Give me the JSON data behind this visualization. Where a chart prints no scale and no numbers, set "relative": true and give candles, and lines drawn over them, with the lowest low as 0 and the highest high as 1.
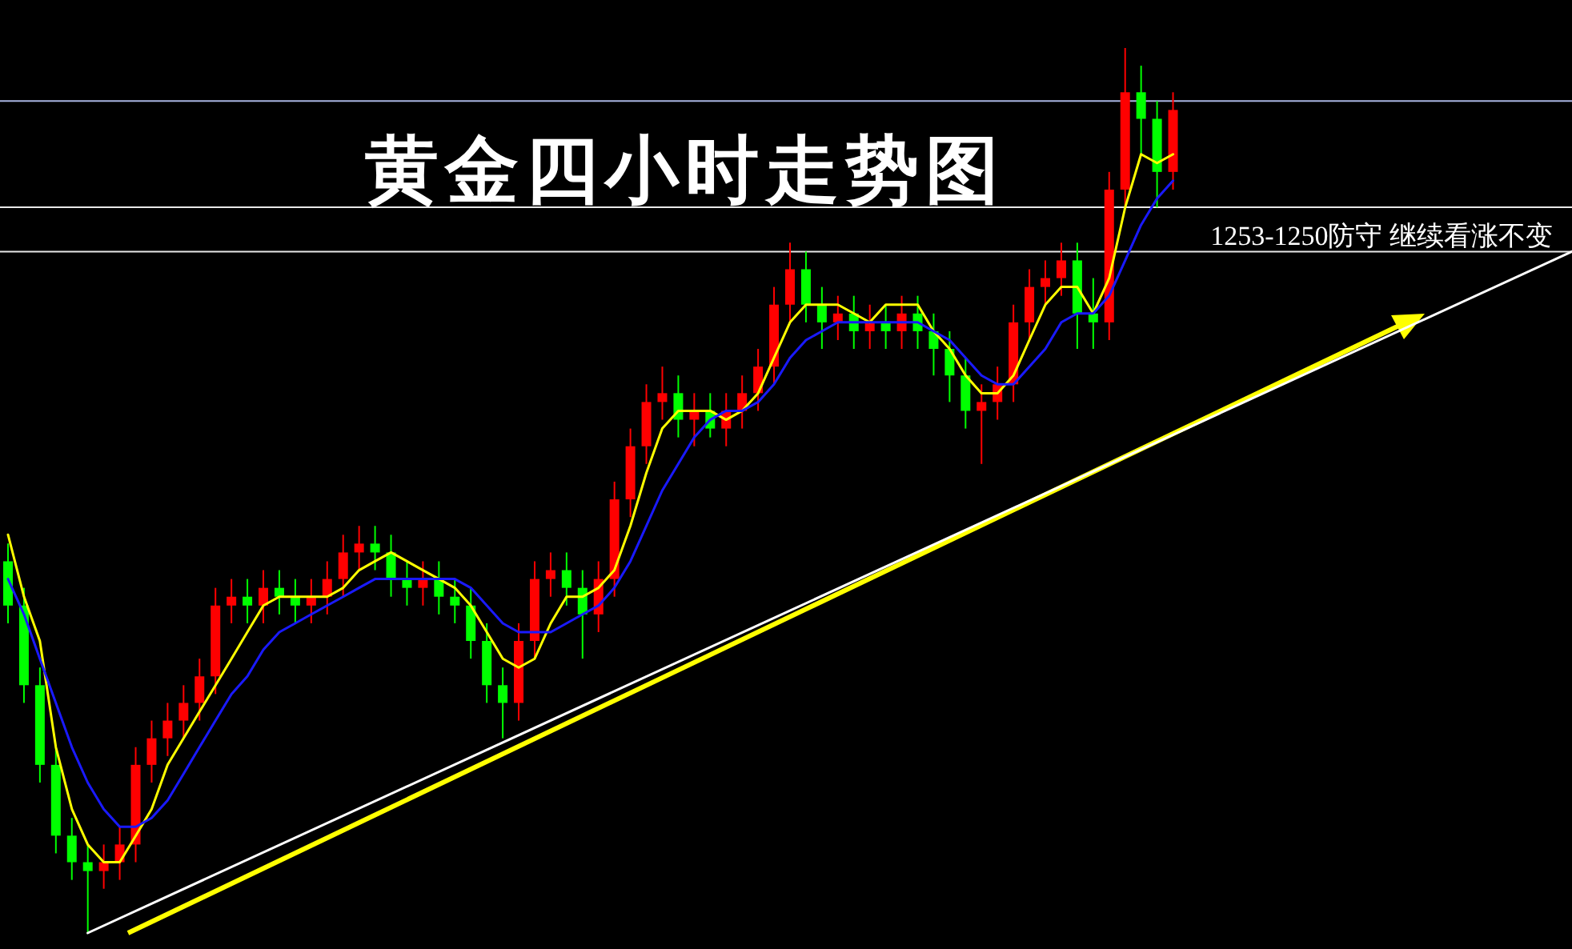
{
  "chart_data": {
    "type": "candlestick",
    "title": "黄金四小时走势图",
    "relative": true,
    "categories": [
      null,
      null,
      null,
      null,
      null,
      null,
      null,
      null,
      null,
      null,
      null,
      null,
      null,
      null,
      null,
      null,
      null,
      null,
      null,
      null,
      null,
      null,
      null,
      null,
      null,
      null,
      null,
      null,
      null,
      null,
      null,
      null,
      null,
      null,
      null,
      null,
      null,
      null,
      null,
      null,
      null,
      null,
      null,
      null,
      null,
      null,
      null,
      null,
      null,
      null,
      null,
      null,
      null,
      null,
      null,
      null,
      null,
      null,
      null,
      null,
      null,
      null,
      null,
      null,
      null,
      null,
      null,
      null,
      null,
      null,
      null,
      null,
      null,
      null,
      null,
      null,
      null,
      null,
      null,
      null,
      null,
      null,
      null,
      null,
      null,
      null,
      null,
      null,
      null,
      null,
      null,
      null,
      null,
      null,
      null,
      null,
      null,
      null,
      null
    ],
    "ohlc": [
      [
        0.42,
        0.44,
        0.35,
        0.37
      ],
      [
        0.37,
        0.39,
        0.26,
        0.28
      ],
      [
        0.28,
        0.3,
        0.17,
        0.19
      ],
      [
        0.19,
        0.21,
        0.09,
        0.11
      ],
      [
        0.11,
        0.13,
        0.06,
        0.08
      ],
      [
        0.08,
        0.1,
        0.0,
        0.07
      ],
      [
        0.07,
        0.1,
        0.05,
        0.08
      ],
      [
        0.08,
        0.12,
        0.06,
        0.1
      ],
      [
        0.1,
        0.21,
        0.08,
        0.19
      ],
      [
        0.19,
        0.24,
        0.17,
        0.22
      ],
      [
        0.22,
        0.26,
        0.2,
        0.24
      ],
      [
        0.24,
        0.28,
        0.22,
        0.26
      ],
      [
        0.26,
        0.31,
        0.24,
        0.29
      ],
      [
        0.29,
        0.39,
        0.27,
        0.37
      ],
      [
        0.37,
        0.4,
        0.35,
        0.38
      ],
      [
        0.38,
        0.4,
        0.35,
        0.37
      ],
      [
        0.37,
        0.41,
        0.35,
        0.39
      ],
      [
        0.39,
        0.41,
        0.36,
        0.38
      ],
      [
        0.38,
        0.4,
        0.35,
        0.37
      ],
      [
        0.37,
        0.4,
        0.35,
        0.38
      ],
      [
        0.38,
        0.42,
        0.36,
        0.4
      ],
      [
        0.4,
        0.45,
        0.38,
        0.43
      ],
      [
        0.43,
        0.46,
        0.41,
        0.44
      ],
      [
        0.44,
        0.46,
        0.41,
        0.43
      ],
      [
        0.43,
        0.45,
        0.38,
        0.4
      ],
      [
        0.4,
        0.42,
        0.37,
        0.39
      ],
      [
        0.39,
        0.42,
        0.37,
        0.4
      ],
      [
        0.4,
        0.42,
        0.36,
        0.38
      ],
      [
        0.38,
        0.4,
        0.35,
        0.37
      ],
      [
        0.37,
        0.39,
        0.31,
        0.33
      ],
      [
        0.33,
        0.35,
        0.26,
        0.28
      ],
      [
        0.28,
        0.3,
        0.22,
        0.26
      ],
      [
        0.26,
        0.35,
        0.24,
        0.33
      ],
      [
        0.33,
        0.42,
        0.31,
        0.4
      ],
      [
        0.4,
        0.43,
        0.38,
        0.41
      ],
      [
        0.41,
        0.43,
        0.37,
        0.39
      ],
      [
        0.39,
        0.41,
        0.31,
        0.36
      ],
      [
        0.36,
        0.42,
        0.34,
        0.4
      ],
      [
        0.4,
        0.51,
        0.38,
        0.49
      ],
      [
        0.49,
        0.57,
        0.47,
        0.55
      ],
      [
        0.55,
        0.62,
        0.53,
        0.6
      ],
      [
        0.6,
        0.64,
        0.58,
        0.61
      ],
      [
        0.61,
        0.63,
        0.56,
        0.58
      ],
      [
        0.58,
        0.61,
        0.55,
        0.59
      ],
      [
        0.59,
        0.61,
        0.56,
        0.57
      ],
      [
        0.57,
        0.61,
        0.55,
        0.59
      ],
      [
        0.59,
        0.63,
        0.57,
        0.61
      ],
      [
        0.61,
        0.66,
        0.59,
        0.64
      ],
      [
        0.64,
        0.73,
        0.62,
        0.71
      ],
      [
        0.71,
        0.78,
        0.69,
        0.75
      ],
      [
        0.75,
        0.77,
        0.69,
        0.71
      ],
      [
        0.71,
        0.73,
        0.66,
        0.69
      ],
      [
        0.69,
        0.72,
        0.67,
        0.7
      ],
      [
        0.7,
        0.72,
        0.66,
        0.68
      ],
      [
        0.68,
        0.71,
        0.66,
        0.69
      ],
      [
        0.69,
        0.71,
        0.66,
        0.68
      ],
      [
        0.68,
        0.72,
        0.66,
        0.7
      ],
      [
        0.7,
        0.72,
        0.66,
        0.68
      ],
      [
        0.68,
        0.7,
        0.63,
        0.66
      ],
      [
        0.66,
        0.68,
        0.6,
        0.63
      ],
      [
        0.63,
        0.65,
        0.57,
        0.59
      ],
      [
        0.59,
        0.62,
        0.53,
        0.6
      ],
      [
        0.6,
        0.64,
        0.58,
        0.62
      ],
      [
        0.62,
        0.71,
        0.6,
        0.69
      ],
      [
        0.69,
        0.75,
        0.67,
        0.73
      ],
      [
        0.73,
        0.76,
        0.71,
        0.74
      ],
      [
        0.74,
        0.78,
        0.72,
        0.76
      ],
      [
        0.76,
        0.78,
        0.66,
        0.7
      ],
      [
        0.7,
        0.74,
        0.66,
        0.69
      ],
      [
        0.69,
        0.86,
        0.67,
        0.84
      ],
      [
        0.84,
        1.0,
        0.82,
        0.95
      ],
      [
        0.95,
        0.98,
        0.88,
        0.92
      ],
      [
        0.92,
        0.94,
        0.82,
        0.86
      ],
      [
        0.86,
        0.95,
        0.84,
        0.93
      ],
      null,
      null,
      null,
      null,
      null,
      null,
      null,
      null,
      null,
      null,
      null,
      null,
      null,
      null,
      null,
      null,
      null,
      null,
      null,
      null,
      null,
      null,
      null,
      null,
      null
    ],
    "colors": [
      "#00ff00",
      "#00ff00",
      "#00ff00",
      "#00ff00",
      "#00ff00",
      "#00ff00",
      "#ff0000",
      "#ff0000",
      "#ff0000",
      "#ff0000",
      "#ff0000",
      "#ff0000",
      "#ff0000",
      "#ff0000",
      "#ff0000",
      "#00ff00",
      "#ff0000",
      "#00ff00",
      "#00ff00",
      "#ff0000",
      "#ff0000",
      "#ff0000",
      "#ff0000",
      "#00ff00",
      "#00ff00",
      "#00ff00",
      "#ff0000",
      "#00ff00",
      "#00ff00",
      "#00ff00",
      "#00ff00",
      "#00ff00",
      "#ff0000",
      "#ff0000",
      "#ff0000",
      "#00ff00",
      "#00ff00",
      "#ff0000",
      "#ff0000",
      "#ff0000",
      "#ff0000",
      "#ff0000",
      "#00ff00",
      "#ff0000",
      "#00ff00",
      "#ff0000",
      "#ff0000",
      "#ff0000",
      "#ff0000",
      "#ff0000",
      "#00ff00",
      "#00ff00",
      "#ff0000",
      "#00ff00",
      "#ff0000",
      "#00ff00",
      "#ff0000",
      "#00ff00",
      "#00ff00",
      "#00ff00",
      "#00ff00",
      "#ff0000",
      "#ff0000",
      "#ff0000",
      "#ff0000",
      "#ff0000",
      "#ff0000",
      "#00ff00",
      "#00ff00",
      "#ff0000",
      "#ff0000",
      "#00ff00",
      "#00ff00",
      "#ff0000",
      null,
      null,
      null,
      null,
      null,
      null,
      null,
      null,
      null,
      null,
      null,
      null,
      null,
      null,
      null,
      null,
      null,
      null,
      null,
      null,
      null,
      null,
      null,
      null,
      null
    ],
    "series": [
      {
        "type": "line",
        "color": "#ffff00",
        "values": [
          0.45,
          0.38,
          0.33,
          0.21,
          0.14,
          0.1,
          0.08,
          0.08,
          0.11,
          0.14,
          0.19,
          0.22,
          0.25,
          0.28,
          0.31,
          0.34,
          0.37,
          0.38,
          0.38,
          0.38,
          0.38,
          0.39,
          0.41,
          0.42,
          0.43,
          0.42,
          0.41,
          0.4,
          0.39,
          0.37,
          0.34,
          0.31,
          0.3,
          0.31,
          0.35,
          0.38,
          0.38,
          0.39,
          0.41,
          0.46,
          0.52,
          0.57,
          0.59,
          0.59,
          0.59,
          0.58,
          0.59,
          0.61,
          0.65,
          0.69,
          0.71,
          0.71,
          0.71,
          0.7,
          0.69,
          0.71,
          0.71,
          0.71,
          0.68,
          0.66,
          0.63,
          0.61,
          0.61,
          0.63,
          0.67,
          0.71,
          0.73,
          0.73,
          0.7,
          0.74,
          0.82,
          0.88,
          0.87,
          0.88,
          null,
          null,
          null,
          null,
          null,
          null,
          null,
          null,
          null,
          null,
          null,
          null,
          null,
          null,
          null,
          null,
          null,
          null,
          null,
          null,
          null,
          null,
          null,
          null,
          null
        ]
      },
      {
        "type": "line",
        "color": "#1a1aff",
        "values": [
          0.4,
          0.36,
          0.31,
          0.26,
          0.21,
          0.17,
          0.14,
          0.12,
          0.12,
          0.13,
          0.15,
          0.18,
          0.21,
          0.24,
          0.27,
          0.29,
          0.32,
          0.34,
          0.35,
          0.36,
          0.37,
          0.38,
          0.39,
          0.4,
          0.4,
          0.4,
          0.4,
          0.4,
          0.4,
          0.39,
          0.37,
          0.35,
          0.34,
          0.34,
          0.34,
          0.35,
          0.36,
          0.37,
          0.39,
          0.42,
          0.46,
          0.5,
          0.53,
          0.56,
          0.58,
          0.59,
          0.59,
          0.6,
          0.62,
          0.65,
          0.67,
          0.68,
          0.69,
          0.69,
          0.69,
          0.69,
          0.69,
          0.69,
          0.68,
          0.67,
          0.65,
          0.63,
          0.62,
          0.62,
          0.64,
          0.66,
          0.69,
          0.7,
          0.7,
          0.72,
          0.76,
          0.8,
          0.83,
          0.85,
          null,
          null,
          null,
          null,
          null,
          null,
          null,
          null,
          null,
          null,
          null,
          null,
          null,
          null,
          null,
          null,
          null,
          null,
          null,
          null,
          null,
          null,
          null,
          null,
          null
        ]
      },
      {
        "type": "line",
        "color": "#ffffff",
        "values": [
          null,
          null,
          null,
          null,
          null,
          0.0,
          null,
          null,
          null,
          null,
          null,
          null,
          null,
          null,
          null,
          null,
          null,
          null,
          null,
          null,
          null,
          null,
          null,
          null,
          null,
          null,
          null,
          null,
          null,
          null,
          null,
          null,
          null,
          null,
          null,
          null,
          null,
          null,
          null,
          null,
          null,
          null,
          null,
          null,
          null,
          null,
          null,
          null,
          null,
          null,
          null,
          null,
          null,
          null,
          null,
          null,
          null,
          null,
          null,
          null,
          null,
          null,
          null,
          null,
          null,
          null,
          null,
          null,
          null,
          null,
          null,
          null,
          null,
          null,
          null,
          null,
          null,
          null,
          null,
          null,
          null,
          null,
          null,
          null,
          null,
          null,
          null,
          null,
          null,
          null,
          null,
          null,
          null,
          null,
          null,
          null,
          null,
          null,
          0.77
        ]
      }
    ],
    "ref_lines": [
      {
        "axis": "y",
        "value": 0.94,
        "color": "#a8b4e0"
      },
      {
        "axis": "y",
        "value": 0.82,
        "color": "#e8e8e8"
      },
      {
        "axis": "y",
        "value": 0.77,
        "color": "#e8e8e8",
        "label": "1253-1250防守  继续看涨不变"
      }
    ]
  }
}
